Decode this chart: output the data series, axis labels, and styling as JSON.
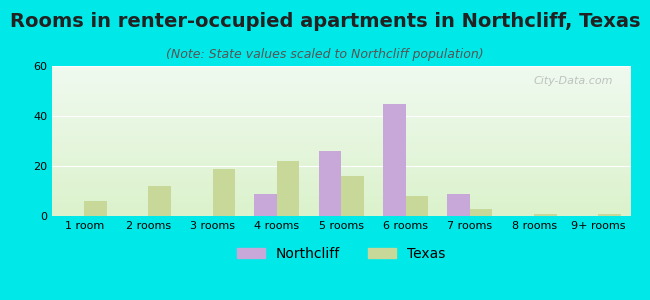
{
  "title": "Rooms in renter-occupied apartments in Northcliff, Texas",
  "subtitle": "(Note: State values scaled to Northcliff population)",
  "categories": [
    "1 room",
    "2 rooms",
    "3 rooms",
    "4 rooms",
    "5 rooms",
    "6 rooms",
    "7 rooms",
    "8 rooms",
    "9+ rooms"
  ],
  "northcliff": [
    0,
    0,
    0,
    9,
    26,
    45,
    9,
    0,
    0
  ],
  "texas": [
    6,
    12,
    19,
    22,
    16,
    8,
    3,
    1,
    1
  ],
  "northcliff_color": "#c8a8d8",
  "texas_color": "#c8d898",
  "background_color": "#00e8e8",
  "plot_bg_gradient_top": "#f0f8f0",
  "plot_bg_gradient_bottom": "#e8f8e0",
  "ylim": [
    0,
    60
  ],
  "yticks": [
    0,
    20,
    40,
    60
  ],
  "bar_width": 0.35,
  "title_fontsize": 14,
  "subtitle_fontsize": 9,
  "tick_fontsize": 8,
  "legend_fontsize": 10,
  "watermark_text": "City-Data.com"
}
